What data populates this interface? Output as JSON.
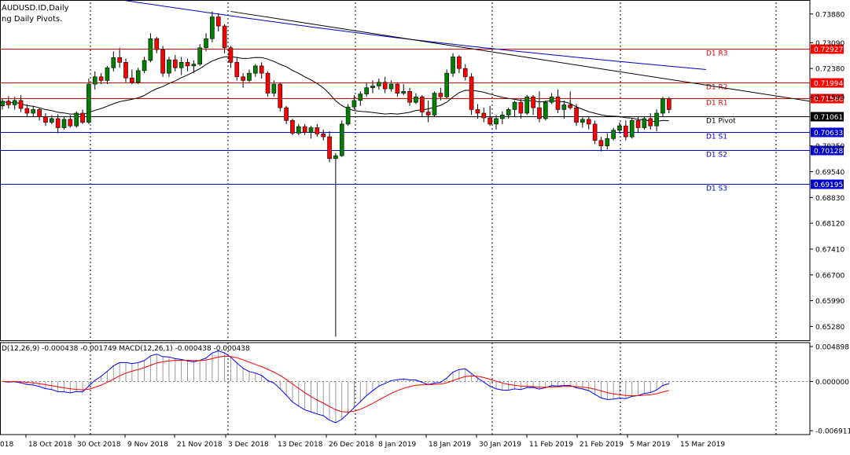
{
  "window": {
    "symbol_title": "AUDUSD.ID,Daily",
    "indicator_label": "ng Daily Pivots.",
    "macd_label": "D(12,26,9) -0.000438 -0.001749 MACD(12,26,1) -0.000438 -0.000438"
  },
  "colors": {
    "background": "#ffffff",
    "bull_candle": "#008000",
    "bear_candle": "#ff0000",
    "resistance": "#d40000",
    "support": "#0000cc",
    "pivot": "#000000",
    "ma_line": "#000000",
    "trend_line": "#000000",
    "long_ma": "#0000cc",
    "macd_line": "#0000ff",
    "signal_line": "#ff0000",
    "grid": "#000000",
    "price_label_red_bg": "#ff0000",
    "price_label_blue_bg": "#0000cc"
  },
  "chart_data": {
    "type": "candlestick",
    "main_panel": {
      "y_ticks": [
        "0.73880",
        "0.73090",
        "0.72380",
        "0.71590",
        "0.70250",
        "0.69540",
        "0.68830",
        "0.68120",
        "0.67410",
        "0.66700",
        "0.65990",
        "0.65280"
      ],
      "y_tick_values": [
        0.7388,
        0.7309,
        0.7238,
        0.7159,
        0.7025,
        0.6954,
        0.6883,
        0.6812,
        0.6741,
        0.667,
        0.6599,
        0.6528
      ],
      "ylim": [
        0.649,
        0.742
      ],
      "pivot_levels": [
        {
          "name": "D1 R3",
          "value": 0.72927,
          "label": "0.72927",
          "kind": "resistance"
        },
        {
          "name": "D1 R2",
          "value": 0.71994,
          "label": "0.71994",
          "kind": "resistance"
        },
        {
          "name": "D1 R1",
          "value": 0.71566,
          "label": "0.71566",
          "kind": "resistance"
        },
        {
          "name": "D1 Pivot",
          "value": 0.71061,
          "label": "0.71061",
          "kind": "pivot"
        },
        {
          "name": "D1 S1",
          "value": 0.70633,
          "label": "0.70633",
          "kind": "support"
        },
        {
          "name": "D1 S2",
          "value": 0.70128,
          "label": "0.70128",
          "kind": "support"
        },
        {
          "name": "D1 S3",
          "value": 0.69195,
          "label": "0.69195",
          "kind": "support"
        }
      ],
      "candles": [
        [
          0.7135,
          0.7155,
          0.7125,
          0.7148
        ],
        [
          0.7148,
          0.7162,
          0.7128,
          0.7138
        ],
        [
          0.7138,
          0.716,
          0.7125,
          0.715
        ],
        [
          0.715,
          0.7165,
          0.7118,
          0.7128
        ],
        [
          0.7128,
          0.714,
          0.7105,
          0.7115
        ],
        [
          0.7115,
          0.7135,
          0.7105,
          0.7125
        ],
        [
          0.7125,
          0.713,
          0.7095,
          0.7105
        ],
        [
          0.7105,
          0.7115,
          0.708,
          0.709
        ],
        [
          0.709,
          0.711,
          0.7085,
          0.71
        ],
        [
          0.71,
          0.7112,
          0.706,
          0.7075
        ],
        [
          0.7075,
          0.7105,
          0.707,
          0.7098
        ],
        [
          0.7098,
          0.711,
          0.7075,
          0.708
        ],
        [
          0.708,
          0.712,
          0.7075,
          0.7115
        ],
        [
          0.7115,
          0.7125,
          0.7085,
          0.709
        ],
        [
          0.709,
          0.721,
          0.7085,
          0.7195
        ],
        [
          0.7195,
          0.723,
          0.718,
          0.7215
        ],
        [
          0.7215,
          0.7225,
          0.7195,
          0.7205
        ],
        [
          0.7205,
          0.7245,
          0.7195,
          0.724
        ],
        [
          0.724,
          0.7285,
          0.723,
          0.7268
        ],
        [
          0.7268,
          0.7295,
          0.724,
          0.7255
        ],
        [
          0.7255,
          0.7265,
          0.72,
          0.7212
        ],
        [
          0.7212,
          0.7235,
          0.7195,
          0.72
        ],
        [
          0.72,
          0.724,
          0.7195,
          0.7232
        ],
        [
          0.7232,
          0.727,
          0.7225,
          0.726
        ],
        [
          0.726,
          0.7335,
          0.7255,
          0.732
        ],
        [
          0.732,
          0.7325,
          0.728,
          0.729
        ],
        [
          0.729,
          0.73,
          0.7215,
          0.7225
        ],
        [
          0.7225,
          0.727,
          0.7215,
          0.7262
        ],
        [
          0.7262,
          0.7275,
          0.723,
          0.724
        ],
        [
          0.724,
          0.727,
          0.722,
          0.7255
        ],
        [
          0.7255,
          0.7265,
          0.723,
          0.7245
        ],
        [
          0.7245,
          0.726,
          0.7225,
          0.725
        ],
        [
          0.725,
          0.7305,
          0.7245,
          0.7295
        ],
        [
          0.7295,
          0.7335,
          0.7285,
          0.732
        ],
        [
          0.732,
          0.7395,
          0.731,
          0.738
        ],
        [
          0.738,
          0.739,
          0.734,
          0.7355
        ],
        [
          0.7355,
          0.736,
          0.728,
          0.7295
        ],
        [
          0.7295,
          0.73,
          0.724,
          0.7255
        ],
        [
          0.7255,
          0.727,
          0.7205,
          0.7215
        ],
        [
          0.7215,
          0.7225,
          0.7185,
          0.7205
        ],
        [
          0.7205,
          0.7235,
          0.72,
          0.7225
        ],
        [
          0.7225,
          0.725,
          0.7215,
          0.7245
        ],
        [
          0.7245,
          0.7255,
          0.721,
          0.7225
        ],
        [
          0.7225,
          0.723,
          0.716,
          0.717
        ],
        [
          0.717,
          0.7205,
          0.716,
          0.7195
        ],
        [
          0.7195,
          0.72,
          0.712,
          0.713
        ],
        [
          0.713,
          0.7135,
          0.7085,
          0.7095
        ],
        [
          0.7095,
          0.71,
          0.7055,
          0.706
        ],
        [
          0.706,
          0.7085,
          0.7055,
          0.7078
        ],
        [
          0.7078,
          0.7085,
          0.7055,
          0.7062
        ],
        [
          0.7062,
          0.708,
          0.7045,
          0.7075
        ],
        [
          0.7075,
          0.7085,
          0.705,
          0.7058
        ],
        [
          0.7058,
          0.707,
          0.704,
          0.705
        ],
        [
          0.705,
          0.7065,
          0.698,
          0.699
        ],
        [
          0.699,
          0.7005,
          0.65,
          0.6998
        ],
        [
          0.6998,
          0.7095,
          0.6995,
          0.7085
        ],
        [
          0.7085,
          0.714,
          0.708,
          0.7132
        ],
        [
          0.7132,
          0.7165,
          0.7125,
          0.715
        ],
        [
          0.715,
          0.7175,
          0.7135,
          0.7168
        ],
        [
          0.7168,
          0.72,
          0.716,
          0.7185
        ],
        [
          0.7185,
          0.7205,
          0.717,
          0.719
        ],
        [
          0.719,
          0.721,
          0.718,
          0.72
        ],
        [
          0.72,
          0.7215,
          0.717,
          0.7182
        ],
        [
          0.7182,
          0.7205,
          0.7175,
          0.7195
        ],
        [
          0.7195,
          0.72,
          0.716,
          0.717
        ],
        [
          0.717,
          0.7195,
          0.7165,
          0.7175
        ],
        [
          0.7175,
          0.7185,
          0.7135,
          0.7145
        ],
        [
          0.7145,
          0.717,
          0.714,
          0.716
        ],
        [
          0.716,
          0.7165,
          0.7105,
          0.7118
        ],
        [
          0.7118,
          0.715,
          0.709,
          0.711
        ],
        [
          0.711,
          0.7175,
          0.7105,
          0.717
        ],
        [
          0.717,
          0.7185,
          0.715,
          0.716
        ],
        [
          0.716,
          0.7235,
          0.7155,
          0.7225
        ],
        [
          0.7225,
          0.728,
          0.7215,
          0.727
        ],
        [
          0.727,
          0.7275,
          0.7225,
          0.7238
        ],
        [
          0.7238,
          0.725,
          0.7205,
          0.7215
        ],
        [
          0.7215,
          0.7225,
          0.711,
          0.7125
        ],
        [
          0.7125,
          0.714,
          0.71,
          0.7115
        ],
        [
          0.7115,
          0.713,
          0.709,
          0.7102
        ],
        [
          0.7102,
          0.7135,
          0.708,
          0.7085
        ],
        [
          0.7085,
          0.711,
          0.707,
          0.71
        ],
        [
          0.71,
          0.712,
          0.7085,
          0.711
        ],
        [
          0.711,
          0.713,
          0.71,
          0.7125
        ],
        [
          0.7125,
          0.715,
          0.7105,
          0.7145
        ],
        [
          0.7145,
          0.7155,
          0.71,
          0.7115
        ],
        [
          0.7115,
          0.7165,
          0.711,
          0.716
        ],
        [
          0.716,
          0.7165,
          0.711,
          0.713
        ],
        [
          0.713,
          0.7175,
          0.709,
          0.71
        ],
        [
          0.71,
          0.715,
          0.7095,
          0.7145
        ],
        [
          0.7145,
          0.717,
          0.714,
          0.716
        ],
        [
          0.716,
          0.718,
          0.7115,
          0.7125
        ],
        [
          0.7125,
          0.715,
          0.71,
          0.7138
        ],
        [
          0.7138,
          0.7175,
          0.7125,
          0.713
        ],
        [
          0.713,
          0.714,
          0.708,
          0.709
        ],
        [
          0.709,
          0.7105,
          0.7075,
          0.7098
        ],
        [
          0.7098,
          0.7105,
          0.707,
          0.7085
        ],
        [
          0.7085,
          0.7095,
          0.703,
          0.704
        ],
        [
          0.704,
          0.705,
          0.701,
          0.7025
        ],
        [
          0.7025,
          0.706,
          0.7015,
          0.7045
        ],
        [
          0.7045,
          0.7075,
          0.704,
          0.7068
        ],
        [
          0.7068,
          0.709,
          0.706,
          0.708
        ],
        [
          0.708,
          0.7095,
          0.704,
          0.705
        ],
        [
          0.705,
          0.71,
          0.7045,
          0.7095
        ],
        [
          0.7095,
          0.7105,
          0.706,
          0.7075
        ],
        [
          0.7075,
          0.7105,
          0.707,
          0.71
        ],
        [
          0.71,
          0.7115,
          0.707,
          0.708
        ],
        [
          0.708,
          0.7125,
          0.7065,
          0.7115
        ],
        [
          0.7115,
          0.716,
          0.7105,
          0.7155
        ],
        [
          0.7155,
          0.716,
          0.7115,
          0.7125
        ]
      ],
      "long_ma_start": 0.744,
      "long_ma_end": 0.7235
    },
    "macd_panel": {
      "y_ticks": [
        "0.004898",
        "0.000000",
        "-0.006911"
      ],
      "y_tick_values": [
        0.004898,
        0.0,
        -0.006911
      ],
      "ylim": [
        -0.00745,
        0.00545
      ]
    },
    "x_tick_labels": [
      "18 Oct 2018",
      "30 Oct 2018",
      "9 Nov 2018",
      "21 Nov 2018",
      "3 Dec 2018",
      "13 Dec 2018",
      "26 Dec 2018",
      "8 Jan 2019",
      "18 Jan 2019",
      "30 Jan 2019",
      "11 Feb 2019",
      "21 Feb 2019",
      "5 Mar 2019",
      "15 Mar 2019"
    ],
    "first_tick_partial": "018",
    "grid": "vertical dotted"
  }
}
